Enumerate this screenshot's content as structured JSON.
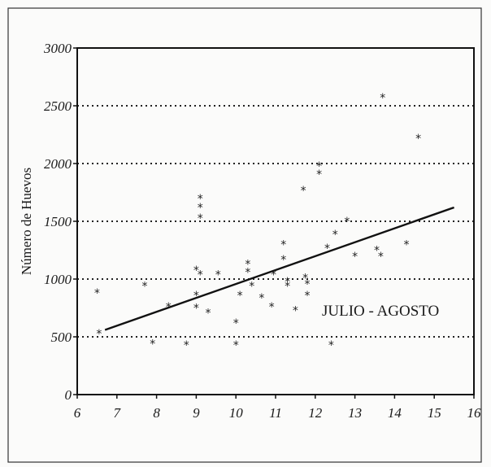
{
  "chart_data": {
    "type": "scatter",
    "title": "",
    "xlabel": "",
    "ylabel": "Número de Huevos",
    "annotation": "JULIO - AGOSTO",
    "xlim": [
      6,
      16
    ],
    "ylim": [
      0,
      3000
    ],
    "x_ticks": [
      "6",
      "7",
      "8",
      "9",
      "10",
      "11",
      "12",
      "13",
      "14",
      "15",
      "16"
    ],
    "y_ticks": [
      "0",
      "500",
      "1000",
      "1500",
      "2000",
      "2500",
      "3000"
    ],
    "grid": "horizontal dotted",
    "marker": "*",
    "points": [
      {
        "x": 6.5,
        "y": 900
      },
      {
        "x": 6.55,
        "y": 550
      },
      {
        "x": 7.7,
        "y": 960
      },
      {
        "x": 7.9,
        "y": 460
      },
      {
        "x": 8.3,
        "y": 780
      },
      {
        "x": 8.75,
        "y": 450
      },
      {
        "x": 9.0,
        "y": 1100
      },
      {
        "x": 9.0,
        "y": 880
      },
      {
        "x": 9.0,
        "y": 770
      },
      {
        "x": 9.1,
        "y": 1720
      },
      {
        "x": 9.1,
        "y": 1640
      },
      {
        "x": 9.1,
        "y": 1550
      },
      {
        "x": 9.1,
        "y": 1060
      },
      {
        "x": 9.3,
        "y": 730
      },
      {
        "x": 9.55,
        "y": 1060
      },
      {
        "x": 10.0,
        "y": 640
      },
      {
        "x": 10.0,
        "y": 450
      },
      {
        "x": 10.1,
        "y": 880
      },
      {
        "x": 10.3,
        "y": 1150
      },
      {
        "x": 10.3,
        "y": 1080
      },
      {
        "x": 10.4,
        "y": 960
      },
      {
        "x": 10.65,
        "y": 860
      },
      {
        "x": 10.9,
        "y": 780
      },
      {
        "x": 10.95,
        "y": 1060
      },
      {
        "x": 11.2,
        "y": 1320
      },
      {
        "x": 11.2,
        "y": 1190
      },
      {
        "x": 11.3,
        "y": 1000
      },
      {
        "x": 11.3,
        "y": 960
      },
      {
        "x": 11.5,
        "y": 750
      },
      {
        "x": 11.7,
        "y": 1790
      },
      {
        "x": 11.75,
        "y": 1030
      },
      {
        "x": 11.8,
        "y": 980
      },
      {
        "x": 11.8,
        "y": 880
      },
      {
        "x": 12.1,
        "y": 2000
      },
      {
        "x": 12.1,
        "y": 1930
      },
      {
        "x": 12.3,
        "y": 1290
      },
      {
        "x": 12.4,
        "y": 450
      },
      {
        "x": 12.5,
        "y": 1410
      },
      {
        "x": 12.8,
        "y": 1520
      },
      {
        "x": 13.0,
        "y": 1220
      },
      {
        "x": 13.55,
        "y": 1270
      },
      {
        "x": 13.65,
        "y": 1220
      },
      {
        "x": 13.7,
        "y": 2590
      },
      {
        "x": 14.3,
        "y": 1320
      },
      {
        "x": 14.6,
        "y": 2240
      }
    ],
    "trendline": {
      "x": [
        6.7,
        15.5
      ],
      "y": [
        560,
        1620
      ]
    }
  }
}
